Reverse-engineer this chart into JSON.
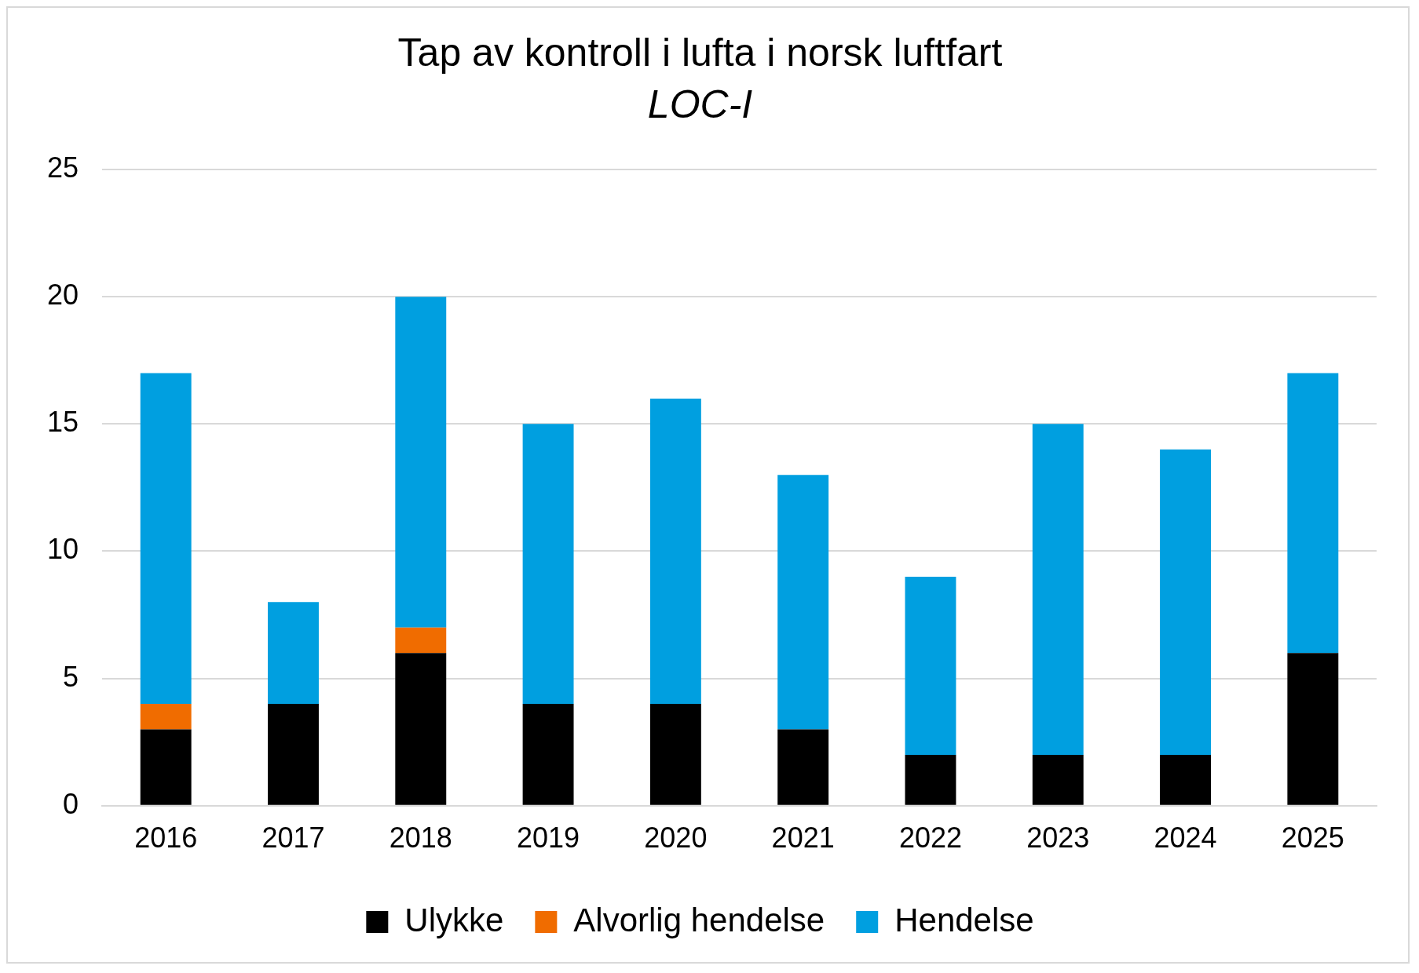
{
  "chart_data": {
    "type": "bar",
    "title": "Tap av kontroll i lufta i norsk luftfart",
    "subtitle": "LOC-I",
    "categories": [
      "2016",
      "2017",
      "2018",
      "2019",
      "2020",
      "2021",
      "2022",
      "2023",
      "2024",
      "2025"
    ],
    "series": [
      {
        "name": "Ulykke",
        "color": "#000000",
        "values": [
          3,
          4,
          6,
          4,
          4,
          3,
          2,
          2,
          2,
          6
        ]
      },
      {
        "name": "Alvorlig hendelse",
        "color": "#f06c00",
        "values": [
          1,
          0,
          1,
          0,
          0,
          0,
          0,
          0,
          0,
          0
        ]
      },
      {
        "name": "Hendelse",
        "color": "#009fe0",
        "values": [
          13,
          4,
          13,
          11,
          12,
          10,
          7,
          13,
          12,
          11
        ]
      }
    ],
    "stacked": true,
    "ylim": [
      0,
      25
    ],
    "yticks": [
      0,
      5,
      10,
      15,
      20,
      25
    ],
    "grid": "y",
    "legend": "bottom"
  }
}
